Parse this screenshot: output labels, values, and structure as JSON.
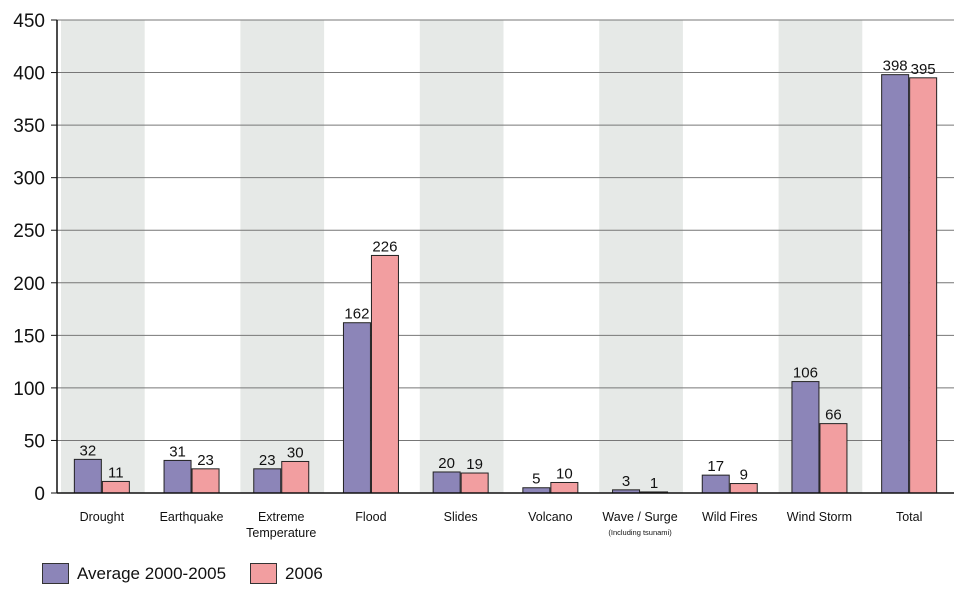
{
  "chart_data": {
    "type": "bar",
    "categories": [
      "Drought",
      "Earthquake",
      "Extreme Temperature",
      "Flood",
      "Slides",
      "Volcano",
      "Wave / Surge",
      "Wild Fires",
      "Wind Storm",
      "Total"
    ],
    "category_lines": [
      [
        "Drought"
      ],
      [
        "Earthquake"
      ],
      [
        "Extreme",
        "Temperature"
      ],
      [
        "Flood"
      ],
      [
        "Slides"
      ],
      [
        "Volcano"
      ],
      [
        "Wave / Surge"
      ],
      [
        "Wild Fires"
      ],
      [
        "Wind Storm"
      ],
      [
        "Total"
      ]
    ],
    "category_notes": [
      "",
      "",
      "",
      "",
      "",
      "",
      "(Including tsunami)",
      "",
      "",
      ""
    ],
    "series": [
      {
        "name": "Average 2000-2005",
        "values": [
          32,
          31,
          23,
          162,
          20,
          5,
          3,
          17,
          106,
          398
        ],
        "color": "#8c85b8"
      },
      {
        "name": "2006",
        "values": [
          11,
          23,
          30,
          226,
          19,
          10,
          1,
          9,
          66,
          395
        ],
        "color": "#f29ea0"
      }
    ],
    "ylim": [
      0,
      450
    ],
    "yticks": [
      0,
      50,
      100,
      150,
      200,
      250,
      300,
      350,
      400,
      450
    ],
    "grid": true,
    "band_color": "#e6e9e7",
    "legend_position": "bottom-left",
    "title": "",
    "xlabel": "",
    "ylabel": ""
  }
}
